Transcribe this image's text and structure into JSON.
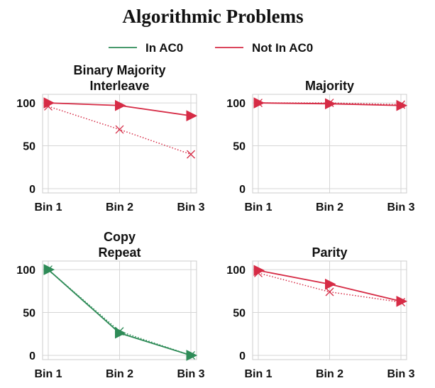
{
  "figure_title": "Algorithmic Problems",
  "legend": [
    {
      "label": "In AC0",
      "color": "#2e8b57"
    },
    {
      "label": "Not In AC0",
      "color": "#d62b45"
    }
  ],
  "chart_data": [
    {
      "type": "line",
      "title_lines": [
        "Binary Majority",
        "Interleave"
      ],
      "categories": [
        "Bin 1",
        "Bin 2",
        "Bin 3"
      ],
      "class": "Not In AC0",
      "color": "#d62b45",
      "ylim": [
        -5,
        110
      ],
      "yticks": [
        0,
        50,
        100
      ],
      "series": [
        {
          "style": "solid",
          "marker": "triangle-right",
          "values": [
            100,
            97,
            85
          ]
        },
        {
          "style": "dotted",
          "marker": "x",
          "values": [
            96,
            69,
            40
          ]
        }
      ]
    },
    {
      "type": "line",
      "title_lines": [
        "Majority"
      ],
      "categories": [
        "Bin 1",
        "Bin 2",
        "Bin 3"
      ],
      "class": "Not In AC0",
      "color": "#d62b45",
      "ylim": [
        -5,
        110
      ],
      "yticks": [
        0,
        50,
        100
      ],
      "series": [
        {
          "style": "solid",
          "marker": "triangle-right",
          "values": [
            100,
            99,
            97
          ]
        },
        {
          "style": "dotted",
          "marker": "x",
          "values": [
            100,
            100,
            98
          ]
        }
      ]
    },
    {
      "type": "line",
      "title_lines": [
        "Copy",
        "Repeat"
      ],
      "categories": [
        "Bin 1",
        "Bin 2",
        "Bin 3"
      ],
      "class": "In AC0",
      "color": "#2e8b57",
      "ylim": [
        -5,
        110
      ],
      "yticks": [
        0,
        50,
        100
      ],
      "series": [
        {
          "style": "solid",
          "marker": "triangle-right",
          "values": [
            100,
            26,
            0
          ]
        },
        {
          "style": "dotted",
          "marker": "x",
          "values": [
            100,
            28,
            0
          ]
        }
      ]
    },
    {
      "type": "line",
      "title_lines": [
        "Parity"
      ],
      "categories": [
        "Bin 1",
        "Bin 2",
        "Bin 3"
      ],
      "class": "Not In AC0",
      "color": "#d62b45",
      "ylim": [
        -5,
        110
      ],
      "yticks": [
        0,
        50,
        100
      ],
      "series": [
        {
          "style": "solid",
          "marker": "triangle-right",
          "values": [
            99,
            83,
            63
          ]
        },
        {
          "style": "dotted",
          "marker": "x",
          "values": [
            96,
            74,
            62
          ]
        }
      ]
    }
  ]
}
